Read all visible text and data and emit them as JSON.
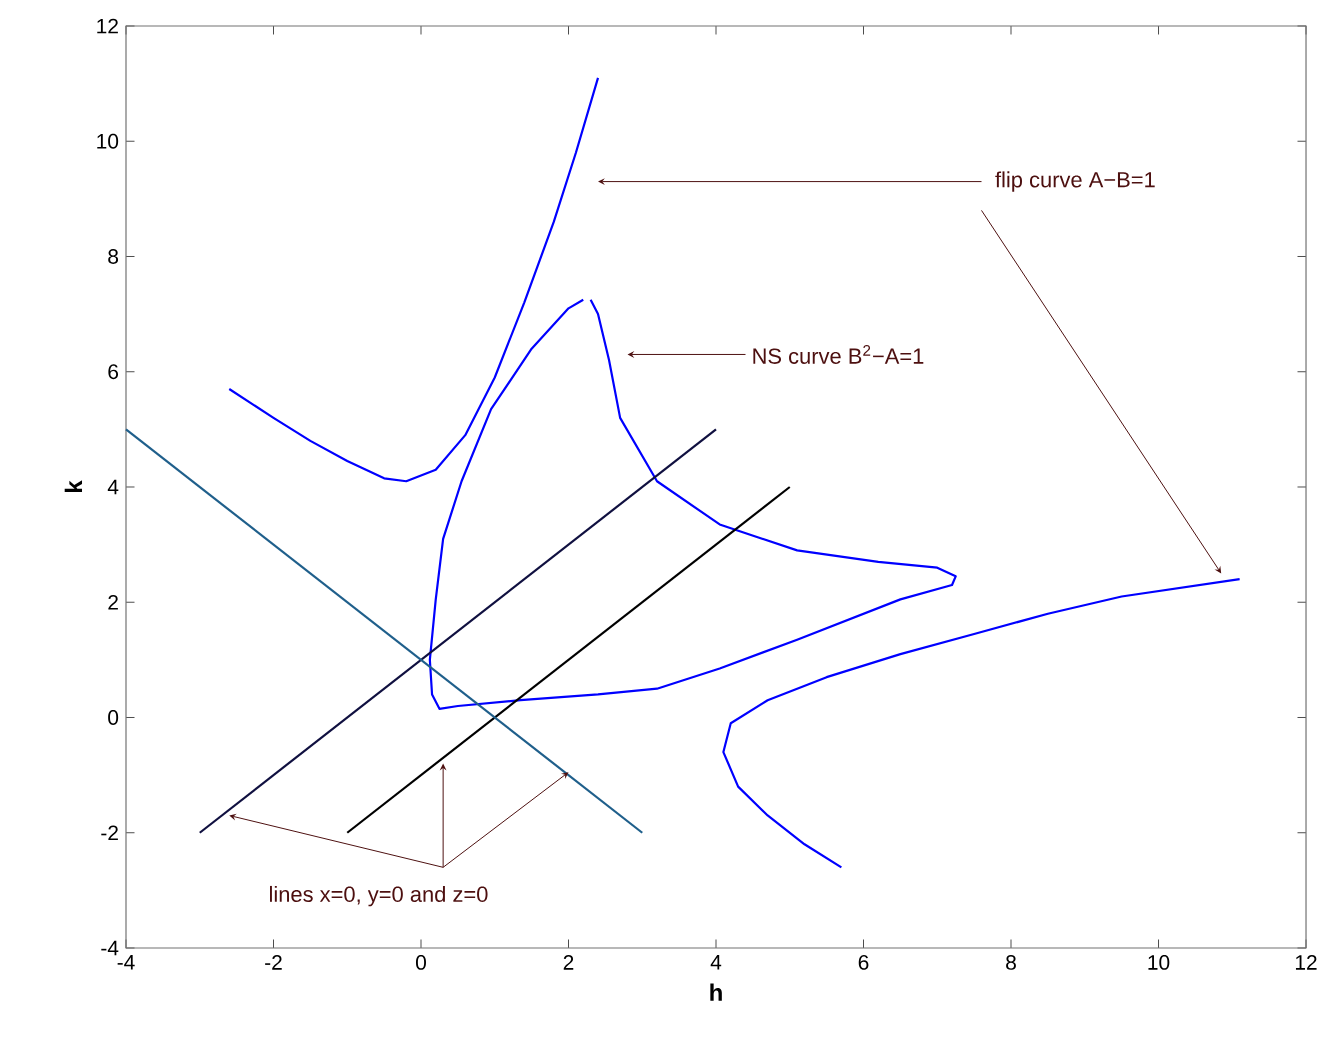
{
  "chart_data": {
    "type": "line",
    "xlabel": "h",
    "ylabel": "k",
    "xlim": [
      -4,
      12
    ],
    "ylim": [
      -4,
      12
    ],
    "xticks": [
      -4,
      -2,
      0,
      2,
      4,
      6,
      8,
      10,
      12
    ],
    "yticks": [
      -4,
      -2,
      0,
      2,
      4,
      6,
      8,
      10,
      12
    ],
    "series": [
      {
        "color": "#0000ff",
        "x": [
          -2.6,
          -2,
          -1.5,
          -1,
          -0.5,
          -0.2,
          0.2,
          0.6,
          1,
          1.4,
          1.8,
          2.1,
          2.4
        ],
        "values": [
          5.7,
          5.2,
          4.8,
          4.45,
          4.15,
          4.1,
          4.3,
          4.9,
          5.9,
          7.2,
          8.6,
          9.8,
          11.1
        ]
      },
      {
        "color": "#0000ff",
        "x": [
          5.7,
          5.2,
          4.7,
          4.3,
          4.1,
          4.2,
          4.7,
          5.5,
          6.5,
          7.5,
          8.5,
          9.5,
          11.1
        ],
        "values": [
          -2.6,
          -2.2,
          -1.7,
          -1.2,
          -0.6,
          -0.1,
          0.3,
          0.7,
          1.1,
          1.45,
          1.8,
          2.1,
          2.4
        ]
      },
      {
        "color": "#0000ff",
        "x": [
          2.3,
          2.4,
          2.55,
          2.7,
          3.2,
          4.05,
          5.1,
          6.2,
          7,
          7.25,
          7.2,
          6.5,
          5.1,
          4.05,
          3.2,
          2.4,
          1.35,
          0.5,
          0.25,
          0.15,
          0.12,
          0.2,
          0.3,
          0.55,
          0.95,
          1.5,
          2.0,
          2.2
        ],
        "values": [
          7.25,
          7.0,
          6.2,
          5.2,
          4.1,
          3.35,
          2.9,
          2.7,
          2.6,
          2.45,
          2.3,
          2.05,
          1.35,
          0.85,
          0.5,
          0.4,
          0.3,
          0.2,
          0.15,
          0.4,
          1.0,
          2.05,
          3.1,
          4.1,
          5.35,
          6.4,
          7.1,
          7.25
        ]
      },
      {
        "color": "#101040",
        "x": [
          -3,
          4
        ],
        "values": [
          -2,
          5
        ]
      },
      {
        "color": "#000000",
        "x": [
          -1,
          5
        ],
        "values": [
          -2,
          4
        ]
      },
      {
        "color": "#1f5f8b",
        "x": [
          -4,
          3
        ],
        "values": [
          5,
          -2
        ]
      }
    ],
    "annotations": [
      {
        "text": "flip curve A−B=1",
        "x": 2.4,
        "y": 9.3
      },
      {
        "text": "NS curve B$^{2}$−A=1",
        "x": 2.8,
        "y": 6.3
      },
      {
        "text": "lines x=0, y=0 and z=0",
        "x": -2.6,
        "y": -1.7
      }
    ]
  }
}
